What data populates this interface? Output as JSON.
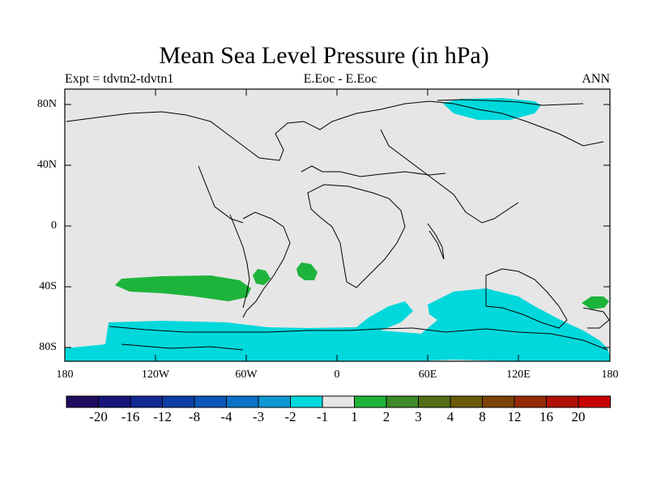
{
  "title": "Mean Sea Level Pressure (in hPa)",
  "left_string": "Expt = tdvtn2-tdvtn1",
  "center_string": "E.Eoc - E.Eoc",
  "right_string": "ANN",
  "lat_ticks": [
    "80N",
    "40N",
    "0",
    "40S",
    "80S"
  ],
  "lon_ticks": [
    "180",
    "120W",
    "60W",
    "0",
    "60E",
    "120E",
    "180"
  ],
  "colorbar": {
    "colors": [
      "#1f0c5e",
      "#16167a",
      "#122a94",
      "#0e3fa6",
      "#0b56b8",
      "#0a73c8",
      "#0d98d2",
      "#00d8dc",
      "#e6e6e6",
      "#1eb43c",
      "#3c8a28",
      "#526e16",
      "#6a5a0a",
      "#7e4308",
      "#962a08",
      "#b01006",
      "#c80000"
    ],
    "labels": [
      "-20",
      "-16",
      "-12",
      "-8",
      "-4",
      "-3",
      "-2",
      "-1",
      "1",
      "2",
      "3",
      "4",
      "8",
      "12",
      "16",
      "20"
    ]
  },
  "colors": {
    "land_ocean_fill": "#e6e6e6",
    "negative_contour": "#00d8dc",
    "positive_contour": "#1eb43c",
    "coastline": "#000000"
  }
}
